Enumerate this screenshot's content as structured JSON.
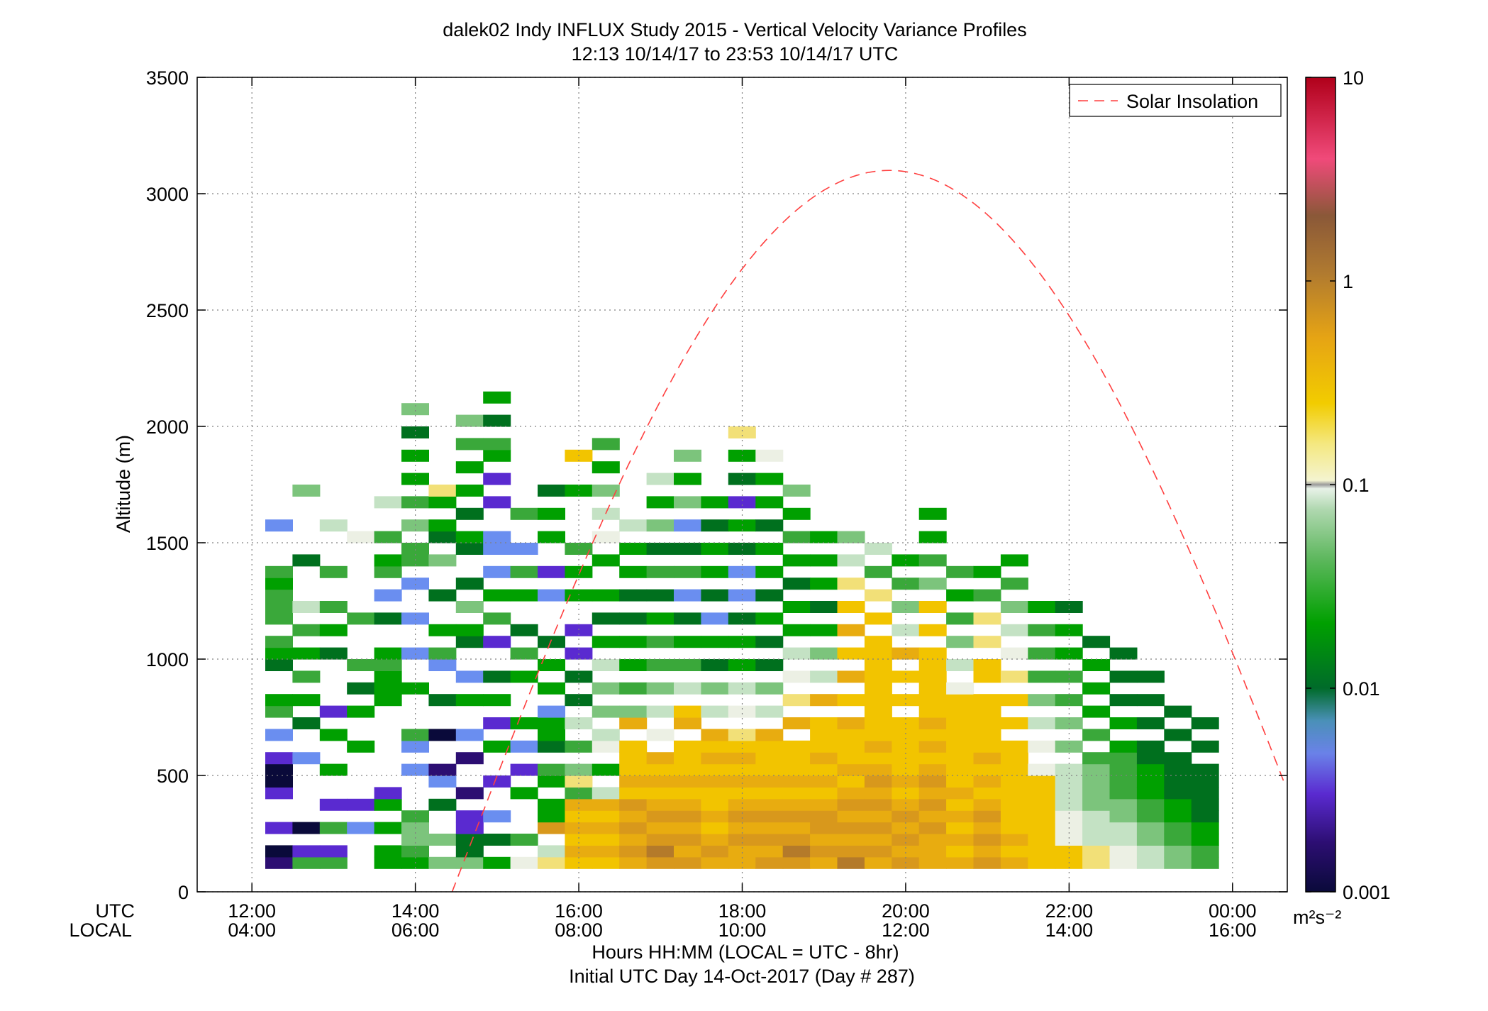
{
  "chart_data": {
    "type": "heatmap",
    "title": "dalek02 Indy INFLUX Study 2015 - Vertical Velocity Variance Profiles",
    "subtitle": "12:13 10/14/17 to 23:53 10/14/17  UTC",
    "ylabel": "Altitude (m)",
    "xlabel": "Hours HH:MM  (LOCAL = UTC - 8hr)",
    "xlabel2": "Initial UTC Day 14-Oct-2017 (Day # 287)",
    "x_row_labels": [
      "UTC",
      "LOCAL"
    ],
    "x_ticks_utc": [
      "12:00",
      "14:00",
      "16:00",
      "18:00",
      "20:00",
      "22:00",
      "00:00"
    ],
    "x_ticks_local": [
      "04:00",
      "06:00",
      "08:00",
      "10:00",
      "12:00",
      "14:00",
      "16:00"
    ],
    "x_tick_hours": [
      12,
      14,
      16,
      18,
      20,
      22,
      24
    ],
    "xlim_hours": [
      11.33,
      24.67
    ],
    "y_ticks": [
      "0",
      "500",
      "1000",
      "1500",
      "2000",
      "2500",
      "3000",
      "3500"
    ],
    "ylim": [
      0,
      3500
    ],
    "grid": true,
    "legend": {
      "position": "top-right",
      "entries": [
        "Solar Insolation"
      ]
    },
    "colorbar": {
      "scale": "log",
      "range": [
        0.001,
        10
      ],
      "ticks": [
        "0.001",
        "0.01",
        "0.1",
        "1",
        "10"
      ],
      "units": "m²s⁻²"
    },
    "colors": {
      "solar_line": "#ff4040",
      "grid": "#808080"
    },
    "cell_width_hours": 0.3333,
    "cell_height_m": 50,
    "first_cell_center_hours": 12.33,
    "first_cell_center_altitude_m": 125,
    "variance_code_legend": "Each row = one column of time bins from 12:20 UTC in 20-min steps; each character = one 50 m altitude bin starting at 100 m. Codes: '.'=no data, '0'≈0.001, '1'≈0.002, '2'≈0.004, '3'≈0.006, '4'≈0.01, '5'≈0.02, '6'≈0.04, '7'≈0.07, '8'≈0.1, '9'≈0.15, 'a'≈0.2, 'b'≈0.3, 'c'≈0.45, 'd'≈0.6, 'e'≈0.9",
    "variance_codes": [
      "10.2..2002.3.65..456.66656...3",
      "62.0.....3..4.5.6.5.6.8...4.....7..",
      "62.6.2..5..5.2....4.5.6..6...8",
      "...3.2....5..5.4.6...6......9.",
      "55.5.52.......55565..4.3.65.6..8",
      "56776...3.36...5..3..3..3.66.7.6.5.5.4.7",
      "7.7..4.31..0..4..36.5..4..7.45.5a",
      "74422.1..1.3..5.3..45.7.4..45.4.5.5.6.7",
      "5.4.3..2..5.2.5.4..2.6.5.3.33..2.2.56.4.5",
      "9.6...5.2.3.5...5.6.4..5.6.3..6",
      "a8.d55.56.4553.5.5.4...3.2..5.5.4",
      "bcbcbc6a7.6.8.4.4.2.2..5.5.6....5..b",
      "bcbcbc8.5.98.7.7.8.5.4.5..5.9.8.7.5.6",
      "cdcdcdbcbbb.c7.6.5.5.4.4.5.5.8.",
      "dedcdcbcbc.9.8.7.6.6.5.4.6.4.7.5.8",
      "dcdcdcbcbbb.cb.8.6.5.4.3.6.4.3.7.5.7",
      "cdcbcbbcbcbc.8.7.4.5.3.4.5.5.4.5",
      "ccdcdcbcbcba.9.8.5.5.4.3.3.4.5.2.4.5.a",
      "dcdcdcbcbbbc.8.7.4.4.5.4.5.5.4.5.5.9",
      "dedcdcbcbbb.c.a.9.8.5.5.4.5.6.5.7",
      "cdcddcbcbcbbb.c.8.7.5.4.5.5.5",
      "edcdcdcbcbbbc.b.c.b.c.b.a.8.7",
      "cdcdcdcdcbcbbbbbbbbb.b.a.6.8",
      "dcdcdcbcbbbbb.b.b.c.8.7.6.5",
      "cccdcdcdcbcbcbbbbbb.b.b.7.6.5.5",
      "cbcbcbcbbbbbbbb9.8.7.6.5.6",
      "dcdcdcbcbcbbbbb.bb.a.a.6.5",
      "cbcbbbbbbbb.b.b.a.9.8.7.6.5",
      "bbbbbbbb9.9.8.7.6.6.6.5",
      "bb9998888.7.7.6.6.5.5.4",
      "aa88877776.6.5.5.5.4",
      "99887766665.5.4.4.4",
      "88776655544.4.4.4",
      "7766554444.4.4",
      "665544444.4.4"
    ]
  }
}
